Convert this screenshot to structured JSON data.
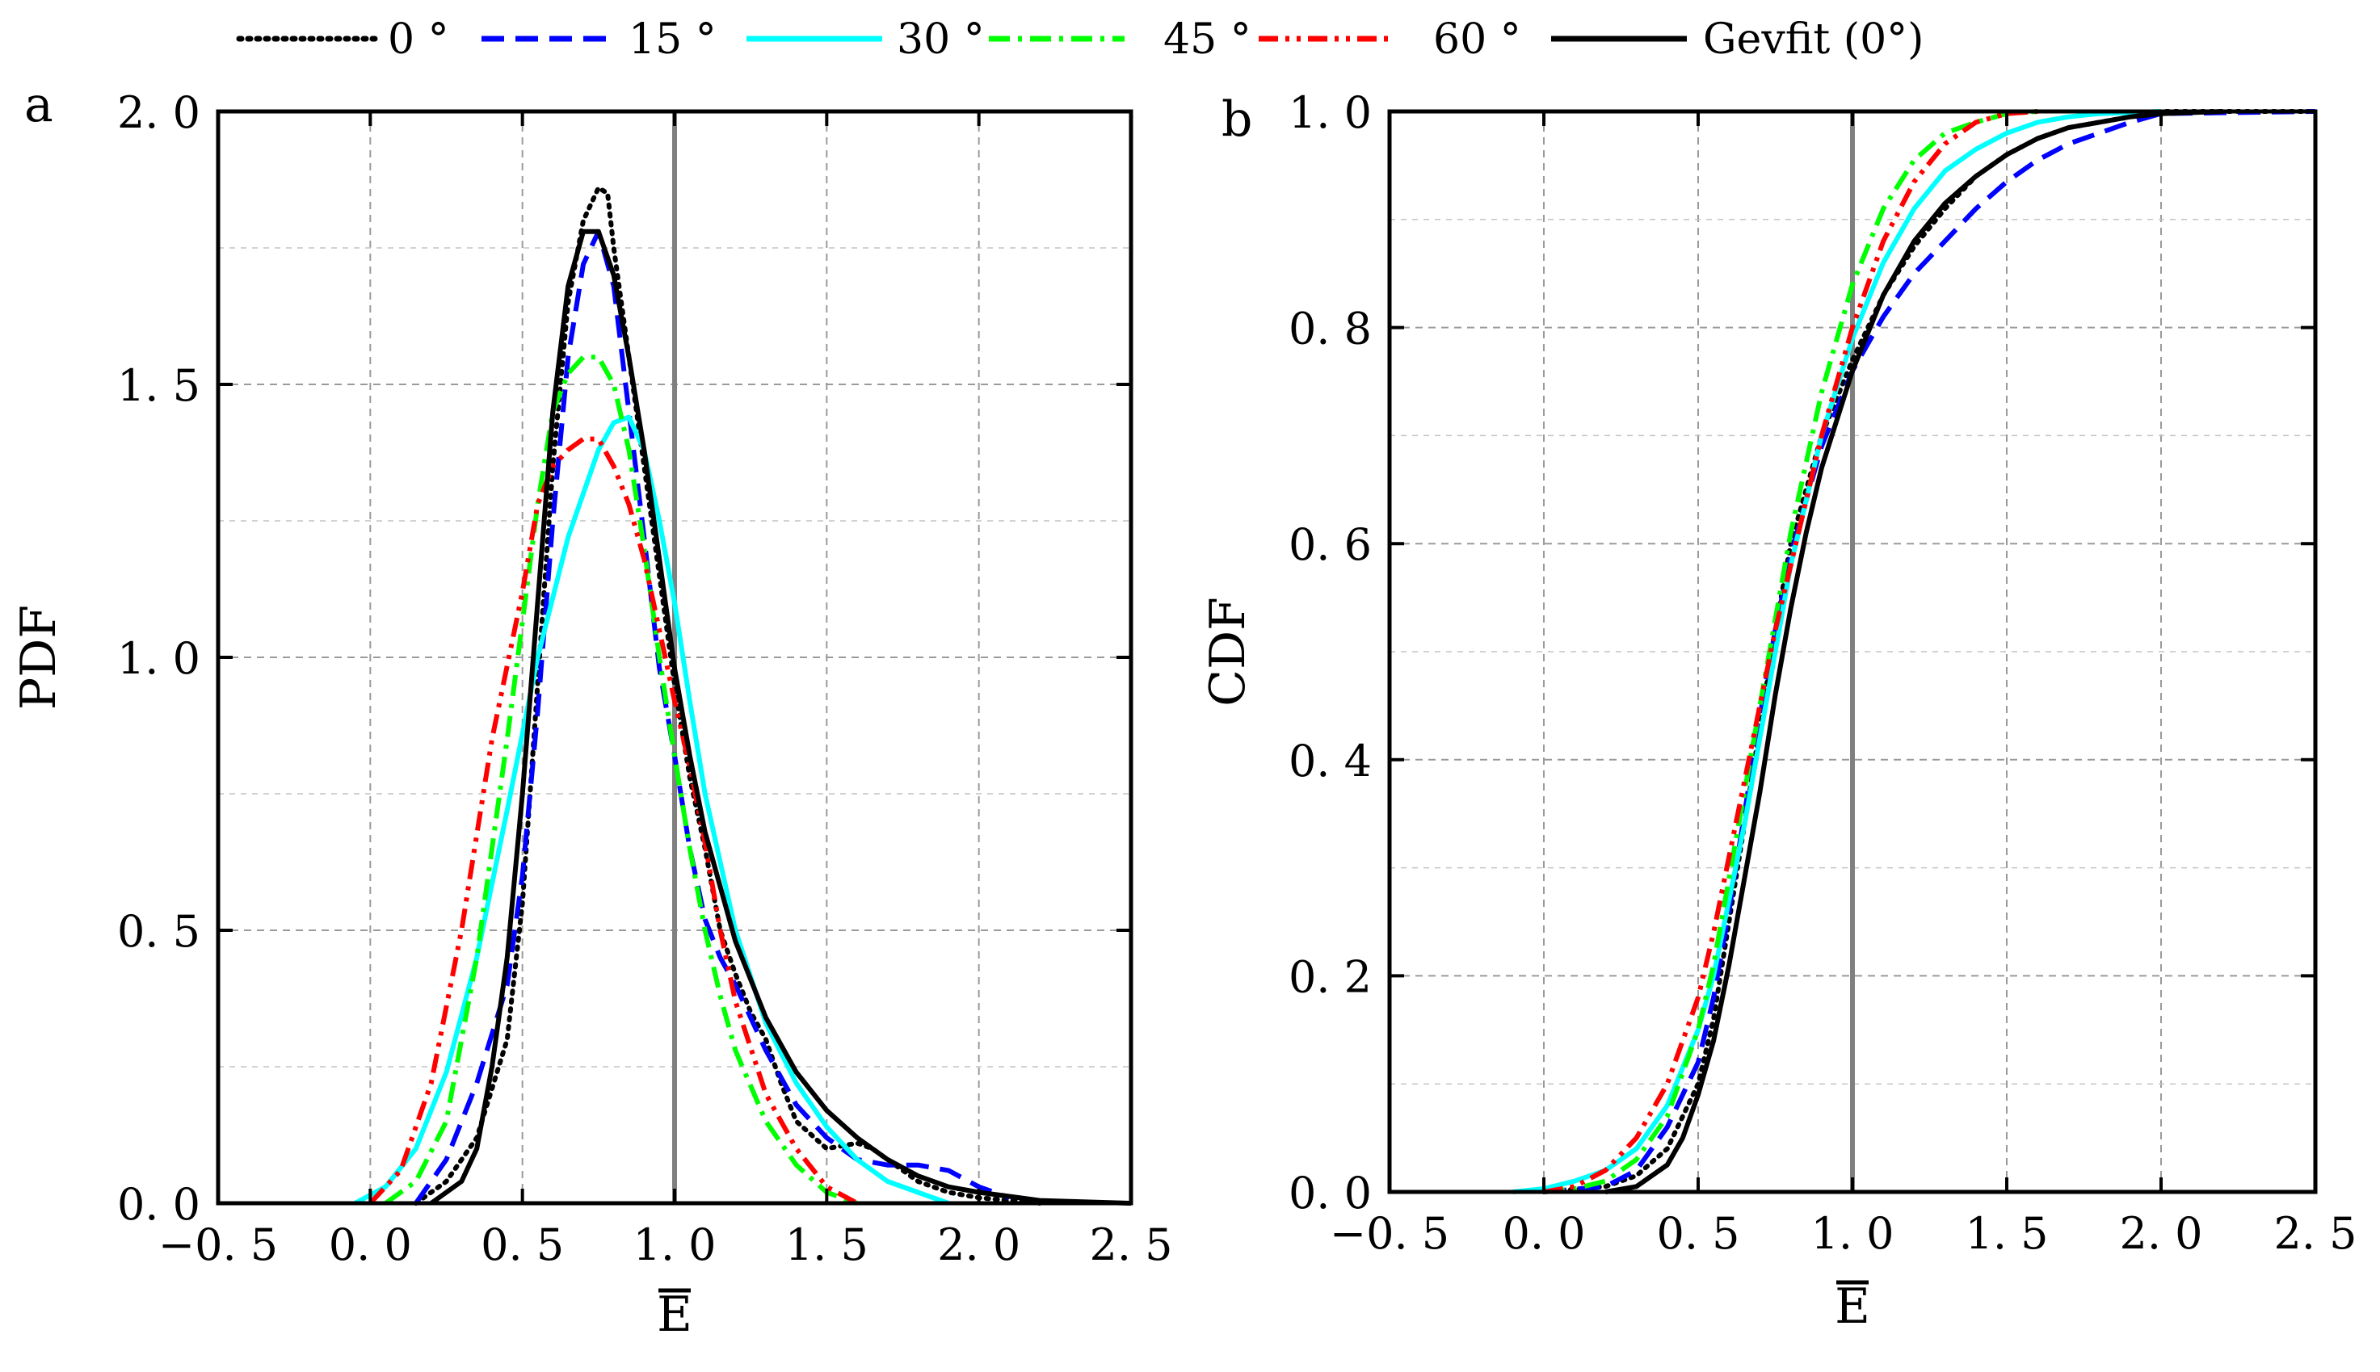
{
  "legend": {
    "entries": [
      {
        "label": "0 °",
        "color": "#000000",
        "style": "dotted"
      },
      {
        "label": "15 °",
        "color": "#0000ff",
        "style": "dashed"
      },
      {
        "label": "30 °",
        "color": "#00ffff",
        "style": "solid"
      },
      {
        "label": "45 °",
        "color": "#00ff00",
        "style": "dashdot"
      },
      {
        "label": "60 °",
        "color": "#ff0000",
        "style": "dashdotdot"
      },
      {
        "label": "Gevfit (0°)",
        "color": "#000000",
        "style": "solid"
      }
    ]
  },
  "chart_data": [
    {
      "type": "line",
      "panel_label": "a",
      "xlabel": "E",
      "ylabel": "PDF",
      "xlim": [
        -0.5,
        2.5
      ],
      "ylim": [
        0,
        2.0
      ],
      "xticks": [
        -0.5,
        0.0,
        0.5,
        1.0,
        1.5,
        2.0,
        2.5
      ],
      "xtick_labels": [
        "−0. 5",
        "0. 0",
        "0. 5",
        "1. 0",
        "1. 5",
        "2. 0",
        "2. 5"
      ],
      "yticks": [
        0.0,
        0.5,
        1.0,
        1.5,
        2.0
      ],
      "ytick_labels": [
        "0. 0",
        "0. 5",
        "1. 0",
        "1. 5",
        "2. 0"
      ],
      "grid": true,
      "reference_line_x": 1.0,
      "series": [
        {
          "name": "0 °",
          "color": "#000000",
          "style": "dotted",
          "x": [
            0.15,
            0.25,
            0.35,
            0.45,
            0.5,
            0.55,
            0.6,
            0.65,
            0.7,
            0.75,
            0.78,
            0.8,
            0.85,
            0.9,
            0.95,
            1.0,
            1.05,
            1.1,
            1.15,
            1.2,
            1.25,
            1.3,
            1.35,
            1.4,
            1.5,
            1.6,
            1.65,
            1.7,
            1.75,
            1.8,
            1.9,
            2.0,
            2.1,
            2.2
          ],
          "y": [
            0.0,
            0.04,
            0.12,
            0.3,
            0.55,
            0.95,
            1.35,
            1.65,
            1.8,
            1.86,
            1.85,
            1.75,
            1.55,
            1.35,
            1.15,
            0.95,
            0.78,
            0.65,
            0.5,
            0.42,
            0.35,
            0.3,
            0.22,
            0.15,
            0.1,
            0.11,
            0.1,
            0.08,
            0.06,
            0.04,
            0.02,
            0.01,
            0.005,
            0.0
          ]
        },
        {
          "name": "15 °",
          "color": "#0000ff",
          "style": "dashed",
          "x": [
            0.15,
            0.25,
            0.35,
            0.45,
            0.5,
            0.55,
            0.6,
            0.65,
            0.7,
            0.75,
            0.8,
            0.85,
            0.9,
            0.95,
            1.0,
            1.05,
            1.1,
            1.15,
            1.2,
            1.3,
            1.4,
            1.5,
            1.6,
            1.7,
            1.8,
            1.9,
            2.0,
            2.1
          ],
          "y": [
            0.0,
            0.08,
            0.22,
            0.4,
            0.6,
            0.9,
            1.25,
            1.55,
            1.72,
            1.78,
            1.68,
            1.45,
            1.22,
            0.98,
            0.82,
            0.65,
            0.52,
            0.45,
            0.4,
            0.28,
            0.18,
            0.12,
            0.08,
            0.07,
            0.07,
            0.06,
            0.03,
            0.01
          ]
        },
        {
          "name": "30 °",
          "color": "#00ffff",
          "style": "solid",
          "x": [
            -0.05,
            0.05,
            0.15,
            0.25,
            0.35,
            0.45,
            0.55,
            0.65,
            0.75,
            0.8,
            0.85,
            0.9,
            0.95,
            1.0,
            1.05,
            1.1,
            1.2,
            1.3,
            1.4,
            1.5,
            1.6,
            1.7,
            1.8,
            1.9
          ],
          "y": [
            0.0,
            0.03,
            0.1,
            0.24,
            0.45,
            0.72,
            1.0,
            1.22,
            1.38,
            1.43,
            1.44,
            1.38,
            1.25,
            1.1,
            0.92,
            0.75,
            0.5,
            0.33,
            0.22,
            0.14,
            0.08,
            0.04,
            0.02,
            0.0
          ]
        },
        {
          "name": "45 °",
          "color": "#00ff00",
          "style": "dashdot",
          "x": [
            0.05,
            0.15,
            0.25,
            0.35,
            0.45,
            0.55,
            0.6,
            0.65,
            0.7,
            0.75,
            0.8,
            0.85,
            0.9,
            0.95,
            1.0,
            1.05,
            1.1,
            1.15,
            1.2,
            1.3,
            1.4,
            1.5,
            1.6
          ],
          "y": [
            0.0,
            0.04,
            0.15,
            0.45,
            0.85,
            1.28,
            1.45,
            1.52,
            1.55,
            1.55,
            1.5,
            1.38,
            1.2,
            1.0,
            0.82,
            0.65,
            0.5,
            0.38,
            0.28,
            0.15,
            0.07,
            0.02,
            0.0
          ]
        },
        {
          "name": "60 °",
          "color": "#ff0000",
          "style": "dashdotdot",
          "x": [
            0.0,
            0.1,
            0.2,
            0.3,
            0.4,
            0.5,
            0.55,
            0.6,
            0.65,
            0.7,
            0.75,
            0.8,
            0.85,
            0.9,
            0.95,
            1.0,
            1.05,
            1.1,
            1.15,
            1.2,
            1.3,
            1.4,
            1.5,
            1.6
          ],
          "y": [
            0.0,
            0.06,
            0.22,
            0.5,
            0.85,
            1.12,
            1.28,
            1.35,
            1.38,
            1.4,
            1.4,
            1.35,
            1.28,
            1.18,
            1.05,
            0.92,
            0.8,
            0.66,
            0.5,
            0.37,
            0.2,
            0.1,
            0.03,
            0.0
          ]
        },
        {
          "name": "Gevfit (0°)",
          "color": "#000000",
          "style": "solid",
          "x": [
            0.2,
            0.3,
            0.35,
            0.4,
            0.45,
            0.5,
            0.55,
            0.6,
            0.65,
            0.7,
            0.75,
            0.8,
            0.85,
            0.9,
            0.95,
            1.0,
            1.05,
            1.1,
            1.2,
            1.3,
            1.4,
            1.5,
            1.6,
            1.7,
            1.8,
            1.9,
            2.0,
            2.2,
            2.5
          ],
          "y": [
            0.0,
            0.04,
            0.1,
            0.25,
            0.45,
            0.75,
            1.1,
            1.45,
            1.68,
            1.78,
            1.78,
            1.7,
            1.55,
            1.38,
            1.18,
            0.98,
            0.82,
            0.68,
            0.48,
            0.34,
            0.24,
            0.17,
            0.12,
            0.08,
            0.05,
            0.03,
            0.02,
            0.005,
            0.0
          ]
        }
      ]
    },
    {
      "type": "line",
      "panel_label": "b",
      "xlabel": "E",
      "ylabel": "CDF",
      "xlim": [
        -0.5,
        2.5
      ],
      "ylim": [
        0,
        1.0
      ],
      "xticks": [
        -0.5,
        0.0,
        0.5,
        1.0,
        1.5,
        2.0,
        2.5
      ],
      "xtick_labels": [
        "−0. 5",
        "0. 0",
        "0. 5",
        "1. 0",
        "1. 5",
        "2. 0",
        "2. 5"
      ],
      "yticks": [
        0.0,
        0.2,
        0.4,
        0.6,
        0.8,
        1.0
      ],
      "ytick_labels": [
        "0. 0",
        "0. 2",
        "0. 4",
        "0. 6",
        "0. 8",
        "1. 0"
      ],
      "grid": true,
      "reference_line_x": 1.0,
      "series": [
        {
          "name": "0 °",
          "color": "#000000",
          "style": "dotted",
          "x": [
            0.0,
            0.2,
            0.3,
            0.4,
            0.5,
            0.55,
            0.6,
            0.65,
            0.7,
            0.75,
            0.8,
            0.9,
            1.0,
            1.1,
            1.2,
            1.3,
            1.4,
            1.5,
            1.6,
            1.7,
            1.8,
            1.9,
            2.0,
            2.5
          ],
          "y": [
            0.0,
            0.005,
            0.015,
            0.04,
            0.1,
            0.16,
            0.25,
            0.34,
            0.43,
            0.52,
            0.6,
            0.7,
            0.77,
            0.83,
            0.875,
            0.91,
            0.94,
            0.96,
            0.975,
            0.985,
            0.99,
            0.995,
            1.0,
            1.0
          ]
        },
        {
          "name": "15 °",
          "color": "#0000ff",
          "style": "dashed",
          "x": [
            0.0,
            0.2,
            0.3,
            0.4,
            0.5,
            0.55,
            0.6,
            0.65,
            0.7,
            0.75,
            0.8,
            0.9,
            1.0,
            1.1,
            1.2,
            1.3,
            1.4,
            1.5,
            1.6,
            1.7,
            1.8,
            1.9,
            2.0,
            2.5
          ],
          "y": [
            0.0,
            0.005,
            0.02,
            0.06,
            0.12,
            0.18,
            0.26,
            0.35,
            0.44,
            0.52,
            0.59,
            0.69,
            0.76,
            0.81,
            0.85,
            0.88,
            0.91,
            0.935,
            0.955,
            0.97,
            0.98,
            0.99,
            0.998,
            1.0
          ]
        },
        {
          "name": "30 °",
          "color": "#00ffff",
          "style": "solid",
          "x": [
            -0.1,
            0.0,
            0.1,
            0.2,
            0.3,
            0.4,
            0.5,
            0.55,
            0.6,
            0.65,
            0.7,
            0.75,
            0.8,
            0.9,
            1.0,
            1.1,
            1.2,
            1.3,
            1.4,
            1.5,
            1.6,
            1.7,
            1.8,
            2.0
          ],
          "y": [
            0.0,
            0.003,
            0.01,
            0.02,
            0.04,
            0.08,
            0.15,
            0.2,
            0.27,
            0.34,
            0.42,
            0.5,
            0.58,
            0.7,
            0.79,
            0.86,
            0.91,
            0.945,
            0.965,
            0.98,
            0.99,
            0.995,
            0.998,
            1.0
          ]
        },
        {
          "name": "45 °",
          "color": "#00ff00",
          "style": "dashdot",
          "x": [
            0.0,
            0.1,
            0.2,
            0.3,
            0.4,
            0.5,
            0.55,
            0.6,
            0.65,
            0.7,
            0.75,
            0.8,
            0.9,
            1.0,
            1.1,
            1.2,
            1.3,
            1.4,
            1.5,
            1.6
          ],
          "y": [
            0.0,
            0.003,
            0.01,
            0.03,
            0.07,
            0.15,
            0.21,
            0.29,
            0.37,
            0.45,
            0.53,
            0.61,
            0.74,
            0.84,
            0.91,
            0.955,
            0.98,
            0.99,
            0.998,
            1.0
          ]
        },
        {
          "name": "60 °",
          "color": "#ff0000",
          "style": "dashdotdot",
          "x": [
            0.0,
            0.1,
            0.2,
            0.3,
            0.4,
            0.5,
            0.55,
            0.6,
            0.65,
            0.7,
            0.75,
            0.8,
            0.9,
            1.0,
            1.1,
            1.2,
            1.3,
            1.4,
            1.5,
            1.6
          ],
          "y": [
            0.0,
            0.005,
            0.02,
            0.05,
            0.1,
            0.18,
            0.24,
            0.31,
            0.38,
            0.45,
            0.52,
            0.58,
            0.7,
            0.8,
            0.88,
            0.935,
            0.97,
            0.99,
            0.998,
            1.0
          ]
        },
        {
          "name": "Gevfit (0°)",
          "color": "#000000",
          "style": "solid",
          "x": [
            0.2,
            0.3,
            0.4,
            0.45,
            0.5,
            0.55,
            0.6,
            0.65,
            0.7,
            0.75,
            0.8,
            0.85,
            0.9,
            1.0,
            1.1,
            1.2,
            1.3,
            1.4,
            1.5,
            1.6,
            1.7,
            1.8,
            1.9,
            2.0,
            2.2
          ],
          "y": [
            0.0,
            0.005,
            0.025,
            0.05,
            0.09,
            0.14,
            0.21,
            0.29,
            0.37,
            0.46,
            0.54,
            0.61,
            0.67,
            0.76,
            0.83,
            0.88,
            0.915,
            0.94,
            0.96,
            0.975,
            0.985,
            0.99,
            0.995,
            0.998,
            1.0
          ]
        }
      ]
    }
  ]
}
